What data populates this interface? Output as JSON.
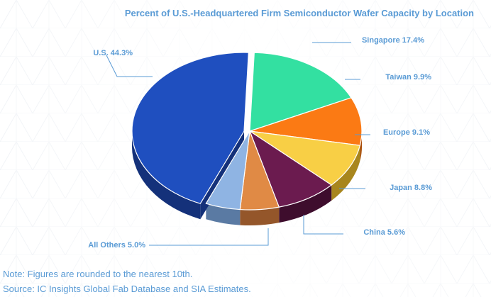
{
  "chart_data": {
    "type": "pie",
    "title": "Percent of U.S.-Headquartered Firm Semiconductor Wafer Capacity by Location",
    "slices": [
      {
        "label": "U.S. 44.3%",
        "name": "U.S.",
        "value": 44.3,
        "color": "#1f4fbf",
        "dark": "#14317a"
      },
      {
        "label": "Singapore 17.4%",
        "name": "Singapore",
        "value": 17.4,
        "color": "#33e0a1",
        "dark": "#1f9467"
      },
      {
        "label": "Taiwan 9.9%",
        "name": "Taiwan",
        "value": 9.9,
        "color": "#fb7a14",
        "dark": "#a94c08"
      },
      {
        "label": "Europe 9.1%",
        "name": "Europe",
        "value": 9.1,
        "color": "#f8cf45",
        "dark": "#a8861d"
      },
      {
        "label": "Japan 8.8%",
        "name": "Japan",
        "value": 8.8,
        "color": "#6b1b4f",
        "dark": "#3e0d2d"
      },
      {
        "label": "China 5.6%",
        "name": "China",
        "value": 5.6,
        "color": "#e08a45",
        "dark": "#94562a"
      },
      {
        "label": "All Others 5.0%",
        "name": "All Others",
        "value": 5.0,
        "color": "#8fb4e3",
        "dark": "#5a7aa3"
      }
    ],
    "label_color": "#5a9bd5",
    "leader_color": "#5a9bd5"
  },
  "notes": {
    "rounding": "Note: Figures are rounded to the nearest 10th.",
    "source": "Source: IC Insights Global Fab Database and SIA Estimates."
  }
}
